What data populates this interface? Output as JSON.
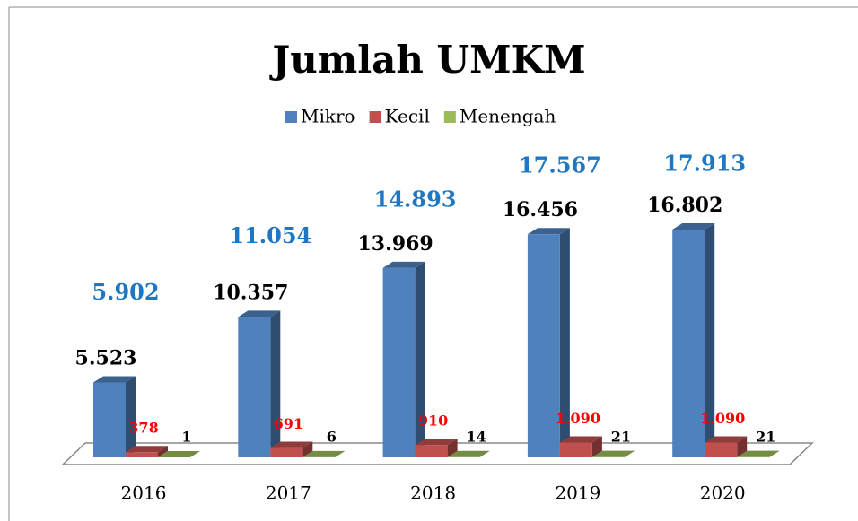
{
  "chart_data": {
    "type": "bar3d",
    "title": "Jumlah UMKM",
    "categories": [
      "2016",
      "2017",
      "2018",
      "2019",
      "2020"
    ],
    "series": [
      {
        "name": "Mikro",
        "color": "#4f81bd",
        "values": [
          5523,
          10357,
          13969,
          16456,
          16802
        ],
        "value_labels": [
          "5.523",
          "10.357",
          "13.969",
          "16.456",
          "16.802"
        ],
        "label_color": "#000000"
      },
      {
        "name": "Kecil",
        "color": "#c0504d",
        "values": [
          378,
          691,
          910,
          1090,
          1090
        ],
        "value_labels": [
          "378",
          "691",
          "910",
          "1.090",
          "1.090"
        ],
        "label_color": "#ff0000"
      },
      {
        "name": "Menengah",
        "color": "#9bbb59",
        "values": [
          1,
          6,
          14,
          21,
          21
        ],
        "value_labels": [
          "1",
          "6",
          "14",
          "21",
          "21"
        ],
        "label_color": "#000000"
      }
    ],
    "totals": {
      "values": [
        5902,
        11054,
        14893,
        17567,
        17913
      ],
      "value_labels": [
        "5.902",
        "11.054",
        "14.893",
        "17.567",
        "17.913"
      ],
      "color": "#1f77c4"
    },
    "legend": "top"
  }
}
